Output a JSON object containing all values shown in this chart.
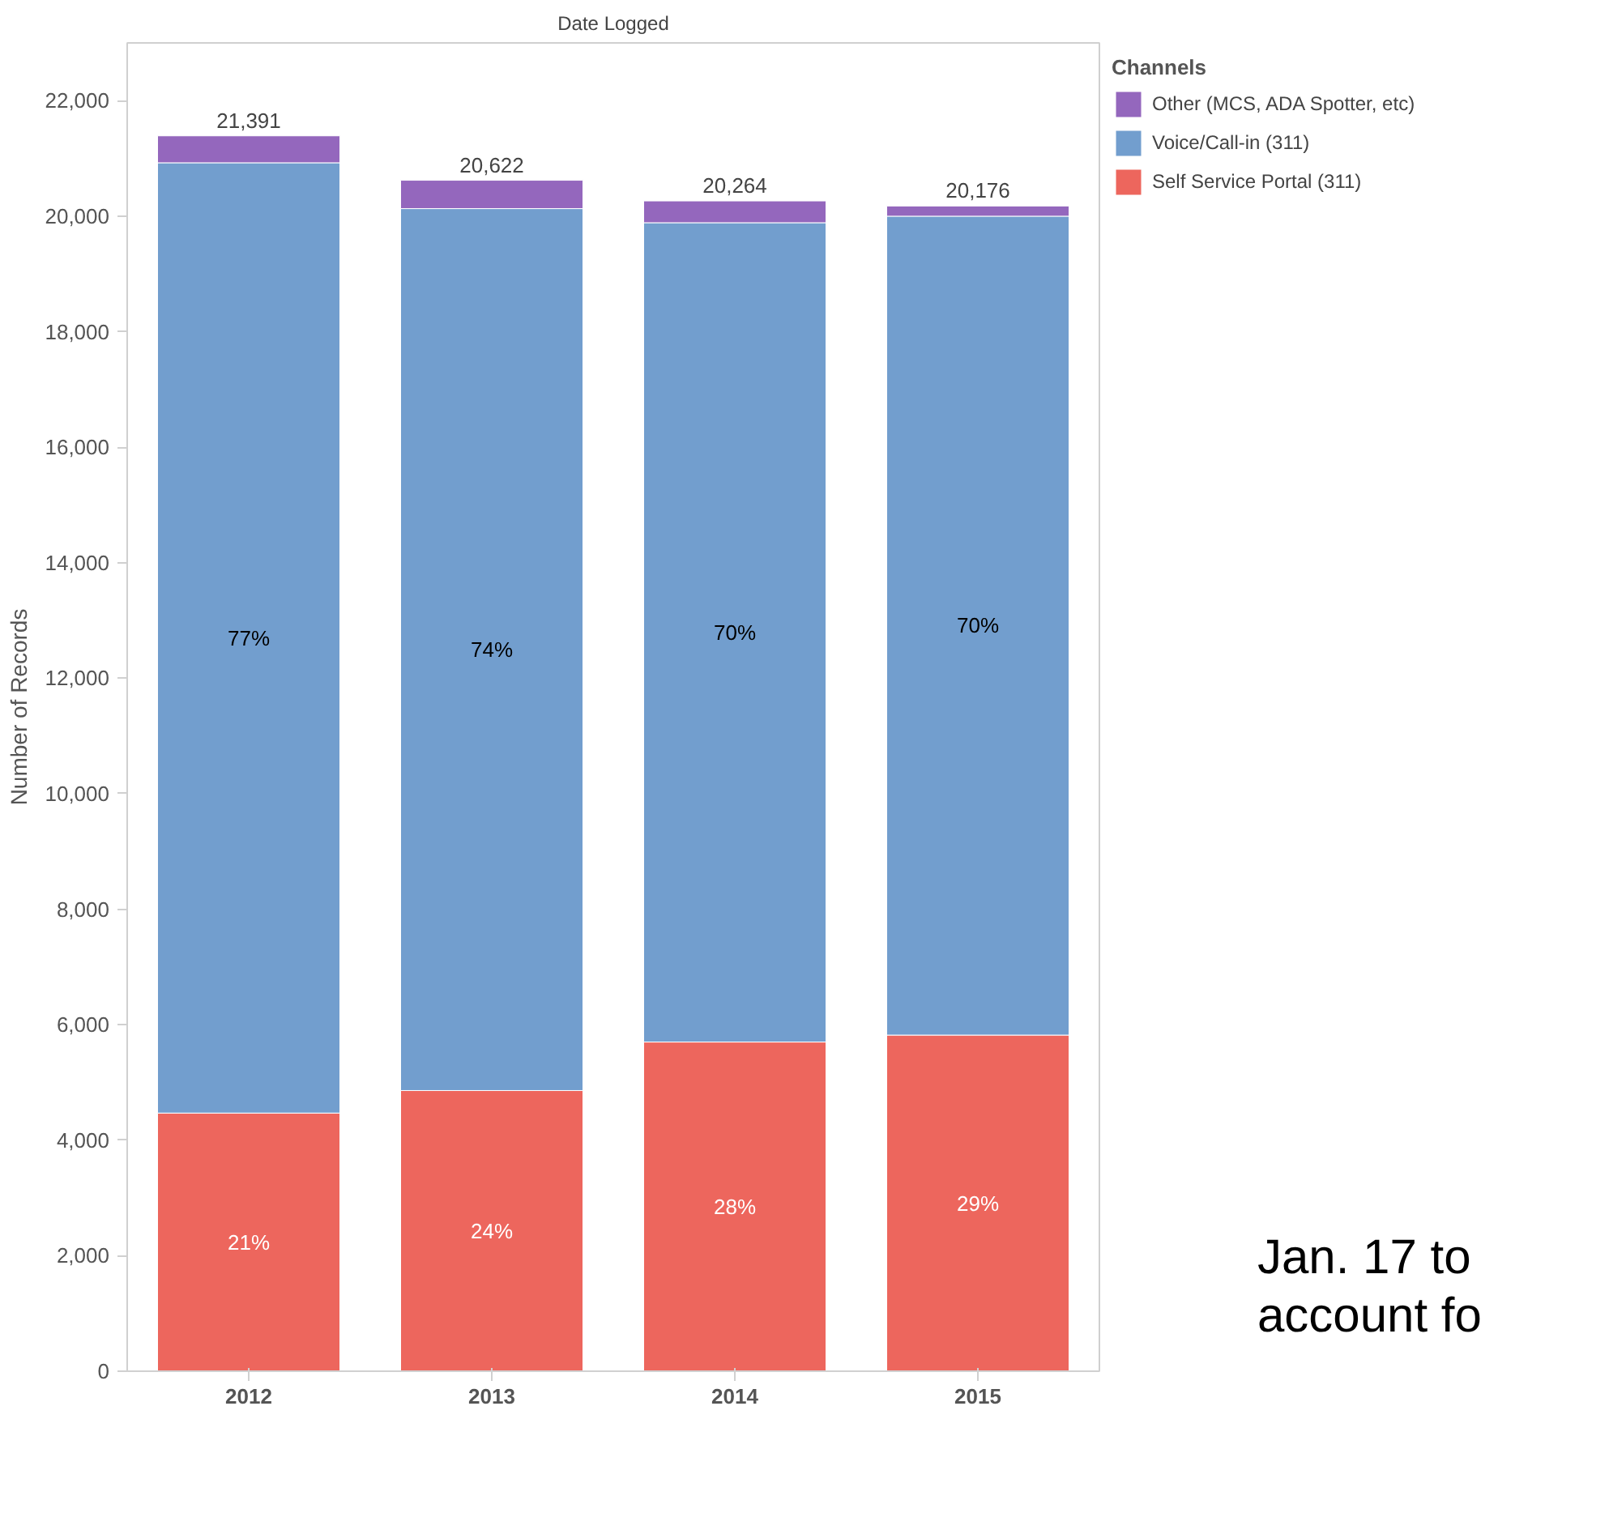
{
  "chart_data": {
    "type": "bar",
    "stacked": true,
    "title": "Date Logged",
    "ylabel": "Number of Records",
    "legend_title": "Channels",
    "categories": [
      "2012",
      "2013",
      "2014",
      "2015"
    ],
    "series": [
      {
        "name": "Self Service Portal (311)",
        "color": "#ed665d",
        "values": [
          4470,
          4860,
          5700,
          5820
        ]
      },
      {
        "name": "Voice/Call-in (311)",
        "color": "#729ece",
        "values": [
          16455,
          15271,
          14187,
          14180
        ]
      },
      {
        "name": "Other (MCS, ADA Spotter, etc)",
        "color": "#9467bd",
        "values": [
          466,
          491,
          377,
          176
        ]
      }
    ],
    "totals": [
      "21,391",
      "20,622",
      "20,264",
      "20,176"
    ],
    "ylim": [
      0,
      23000
    ],
    "yticks": [
      {
        "value": 0,
        "label": "0"
      },
      {
        "value": 2000,
        "label": "2,000"
      },
      {
        "value": 4000,
        "label": "4,000"
      },
      {
        "value": 6000,
        "label": "6,000"
      },
      {
        "value": 8000,
        "label": "8,000"
      },
      {
        "value": 10000,
        "label": "10,000"
      },
      {
        "value": 12000,
        "label": "12,000"
      },
      {
        "value": 14000,
        "label": "14,000"
      },
      {
        "value": 16000,
        "label": "16,000"
      },
      {
        "value": 18000,
        "label": "18,000"
      },
      {
        "value": 20000,
        "label": "20,000"
      },
      {
        "value": 22000,
        "label": "22,000"
      }
    ],
    "grid": false,
    "legend": "top right",
    "annotations": [
      "21%",
      "24%",
      "28%",
      "29%",
      "77%",
      "74%",
      "70%",
      "70%",
      "Jan. 17 to",
      "account fo"
    ]
  }
}
